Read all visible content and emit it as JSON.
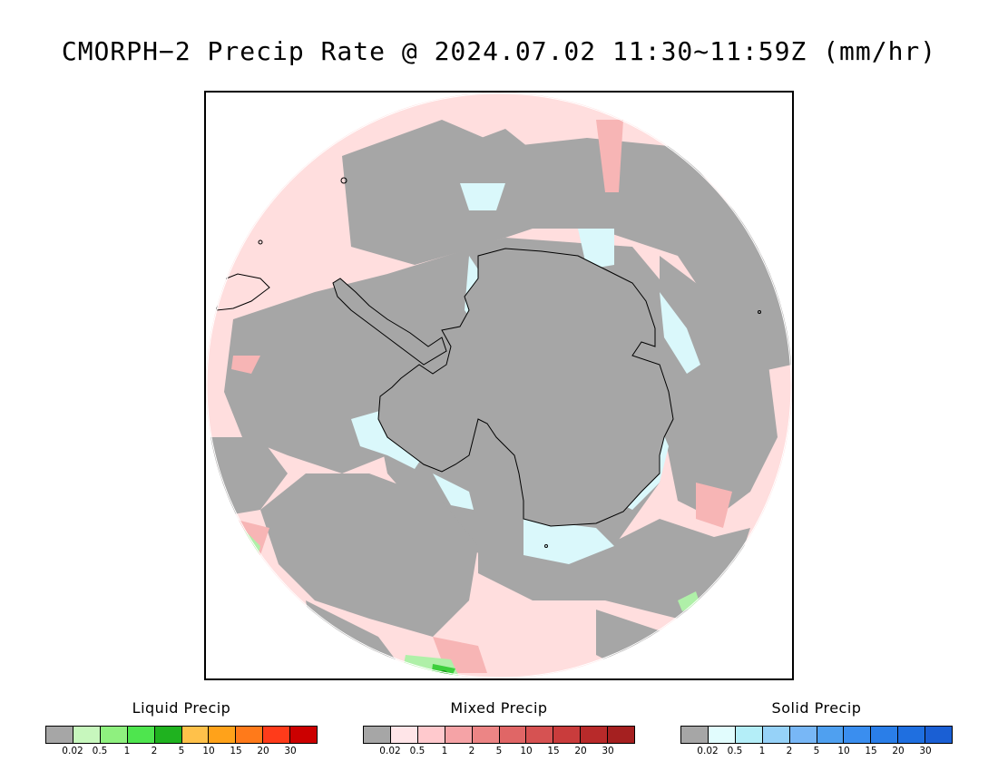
{
  "title": "CMORPH−2 Precip Rate @ 2024.07.02 11:30~11:59Z (mm/hr)",
  "map": {
    "projection": "south polar stereographic",
    "colors": {
      "no_precip": "#a6a6a6",
      "mixed_light": "#ffdede",
      "mixed_med": "#f7b5b5",
      "solid_light": "#daf8fb",
      "liquid_light": "#aff0a8",
      "liquid_med": "#3ccf3c",
      "liquid_dark": "#149a14",
      "coast": "#000000"
    }
  },
  "legends": [
    {
      "title": "Liquid Precip",
      "colors": [
        "#a6a6a6",
        "#c7f7bd",
        "#8ff07f",
        "#4ee54e",
        "#1fb21f",
        "#ffc14a",
        "#ffa21a",
        "#ff7a1a",
        "#ff3b1a",
        "#cc0000"
      ],
      "ticks": [
        "0.02",
        "0.5",
        "1",
        "2",
        "5",
        "10",
        "15",
        "20",
        "30"
      ]
    },
    {
      "title": "Mixed Precip",
      "colors": [
        "#a6a6a6",
        "#ffe5e8",
        "#ffc9cd",
        "#f5a3a6",
        "#ec8585",
        "#e06666",
        "#d65252",
        "#c93c3c",
        "#b82a2a",
        "#a52020"
      ],
      "ticks": [
        "0.02",
        "0.5",
        "1",
        "2",
        "5",
        "10",
        "15",
        "20",
        "30"
      ]
    },
    {
      "title": "Solid Precip",
      "colors": [
        "#a6a6a6",
        "#e1fcfd",
        "#b4eef8",
        "#96d2f8",
        "#78b7f6",
        "#4fa0f0",
        "#3a8eef",
        "#2a7ee8",
        "#1f6fe0",
        "#1a5fd4"
      ],
      "ticks": [
        "0.02",
        "0.5",
        "1",
        "2",
        "5",
        "10",
        "15",
        "20",
        "30"
      ]
    }
  ]
}
